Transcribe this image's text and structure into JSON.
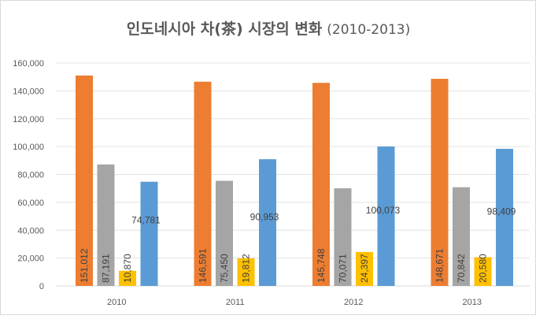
{
  "chart_data": {
    "type": "bar",
    "title": "인도네시아 차(茶) 시장의 변화",
    "subtitle": "(2010-2013)",
    "categories": [
      "2010",
      "2011",
      "2012",
      "2013"
    ],
    "series": [
      {
        "name": "",
        "color": "#ED7D31",
        "values": [
          151012,
          146591,
          145748,
          148671
        ],
        "labels": [
          "151,012",
          "146,591",
          "145,748",
          "148,671"
        ]
      },
      {
        "name": "",
        "color": "#A5A5A5",
        "values": [
          87191,
          75450,
          70071,
          70842
        ],
        "labels": [
          "87,191",
          "75,450",
          "70,071",
          "70,842"
        ]
      },
      {
        "name": "",
        "color": "#FFC000",
        "values": [
          10870,
          19812,
          24397,
          20580
        ],
        "labels": [
          "10,870",
          "19,812",
          "24,397",
          "20,580"
        ]
      },
      {
        "name": "",
        "color": "#5B9BD5",
        "values": [
          74781,
          90953,
          100073,
          98409
        ],
        "labels": [
          "74,781",
          "90,953",
          "100,073",
          "98,409"
        ]
      }
    ],
    "yticks": [
      "0",
      "20,000",
      "40,000",
      "60,000",
      "80,000",
      "100,000",
      "120,000",
      "140,000",
      "160,000"
    ],
    "xlabel": "",
    "ylabel": "",
    "ylim": [
      0,
      160000
    ],
    "grid": true,
    "legend": "none"
  }
}
